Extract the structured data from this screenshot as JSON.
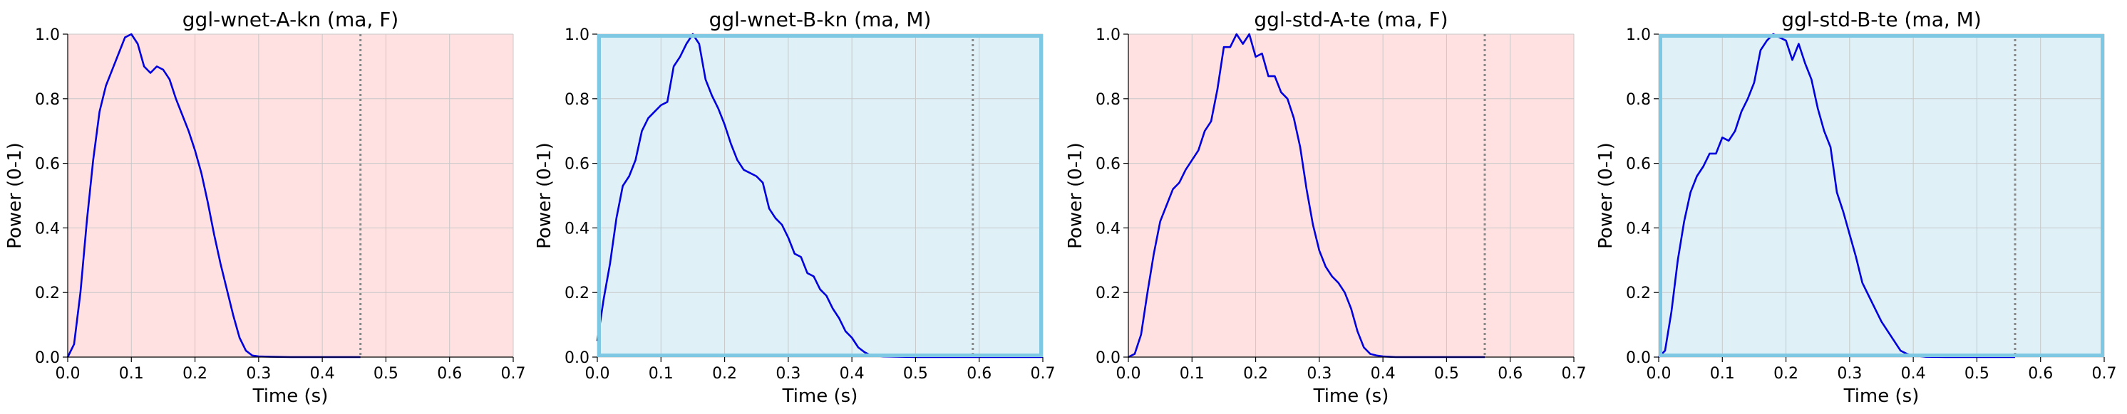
{
  "colors": {
    "line": "#0000dd",
    "female_bg": "#ffe1e1",
    "male_bg": "#dff0f7",
    "male_frame": "#7ec8e3",
    "grid": "#c8c8c8",
    "marker_line": "#888888"
  },
  "chart_data": [
    {
      "type": "line",
      "title": "ggl-wnet-A-kn (ma, F)",
      "xlabel": "Time (s)",
      "ylabel": "Power (0-1)",
      "xlim": [
        0.0,
        0.7
      ],
      "ylim": [
        0.0,
        1.0
      ],
      "xticks": [
        "0.0",
        "0.1",
        "0.2",
        "0.3",
        "0.4",
        "0.5",
        "0.6",
        "0.7"
      ],
      "yticks": [
        "0.0",
        "0.2",
        "0.4",
        "0.6",
        "0.8",
        "1.0"
      ],
      "grid": true,
      "background": "female",
      "marker_x": 0.46,
      "x": [
        0.0,
        0.01,
        0.02,
        0.03,
        0.04,
        0.05,
        0.06,
        0.07,
        0.08,
        0.09,
        0.1,
        0.11,
        0.12,
        0.13,
        0.14,
        0.15,
        0.16,
        0.17,
        0.18,
        0.19,
        0.2,
        0.21,
        0.22,
        0.23,
        0.24,
        0.25,
        0.26,
        0.27,
        0.28,
        0.29,
        0.3,
        0.32,
        0.35,
        0.4,
        0.46
      ],
      "y": [
        0.0,
        0.04,
        0.2,
        0.42,
        0.61,
        0.76,
        0.84,
        0.89,
        0.94,
        0.99,
        1.0,
        0.97,
        0.9,
        0.88,
        0.9,
        0.89,
        0.86,
        0.8,
        0.75,
        0.7,
        0.64,
        0.57,
        0.48,
        0.38,
        0.29,
        0.21,
        0.13,
        0.06,
        0.02,
        0.005,
        0.002,
        0.001,
        0.0,
        0.0,
        0.0
      ]
    },
    {
      "type": "line",
      "title": "ggl-wnet-B-kn (ma, M)",
      "xlabel": "Time (s)",
      "ylabel": "Power (0-1)",
      "xlim": [
        0.0,
        0.7
      ],
      "ylim": [
        0.0,
        1.0
      ],
      "xticks": [
        "0.0",
        "0.1",
        "0.2",
        "0.3",
        "0.4",
        "0.5",
        "0.6",
        "0.7"
      ],
      "yticks": [
        "0.0",
        "0.2",
        "0.4",
        "0.6",
        "0.8",
        "1.0"
      ],
      "grid": true,
      "background": "male",
      "marker_x": 0.59,
      "x": [
        0.0,
        0.01,
        0.02,
        0.03,
        0.04,
        0.05,
        0.06,
        0.07,
        0.08,
        0.09,
        0.1,
        0.11,
        0.12,
        0.13,
        0.14,
        0.15,
        0.16,
        0.17,
        0.18,
        0.19,
        0.2,
        0.21,
        0.22,
        0.23,
        0.24,
        0.25,
        0.26,
        0.27,
        0.28,
        0.29,
        0.3,
        0.31,
        0.32,
        0.33,
        0.34,
        0.35,
        0.36,
        0.37,
        0.38,
        0.39,
        0.4,
        0.41,
        0.42,
        0.43,
        0.45,
        0.5,
        0.6,
        0.7
      ],
      "y": [
        0.05,
        0.18,
        0.29,
        0.43,
        0.53,
        0.56,
        0.61,
        0.7,
        0.74,
        0.76,
        0.78,
        0.79,
        0.9,
        0.93,
        0.97,
        1.0,
        0.97,
        0.86,
        0.81,
        0.77,
        0.72,
        0.66,
        0.61,
        0.58,
        0.57,
        0.56,
        0.54,
        0.46,
        0.43,
        0.41,
        0.37,
        0.32,
        0.31,
        0.26,
        0.25,
        0.21,
        0.19,
        0.15,
        0.12,
        0.08,
        0.06,
        0.03,
        0.015,
        0.005,
        0.002,
        0.0,
        0.0,
        0.0
      ]
    },
    {
      "type": "line",
      "title": "ggl-std-A-te (ma, F)",
      "xlabel": "Time (s)",
      "ylabel": "Power (0-1)",
      "xlim": [
        0.0,
        0.7
      ],
      "ylim": [
        0.0,
        1.0
      ],
      "xticks": [
        "0.0",
        "0.1",
        "0.2",
        "0.3",
        "0.4",
        "0.5",
        "0.6",
        "0.7"
      ],
      "yticks": [
        "0.0",
        "0.2",
        "0.4",
        "0.6",
        "0.8",
        "1.0"
      ],
      "grid": true,
      "background": "female",
      "marker_x": 0.56,
      "x": [
        0.0,
        0.01,
        0.02,
        0.03,
        0.04,
        0.05,
        0.06,
        0.07,
        0.08,
        0.09,
        0.1,
        0.11,
        0.12,
        0.13,
        0.14,
        0.15,
        0.16,
        0.17,
        0.18,
        0.19,
        0.2,
        0.21,
        0.22,
        0.23,
        0.24,
        0.25,
        0.26,
        0.27,
        0.28,
        0.29,
        0.3,
        0.31,
        0.32,
        0.33,
        0.34,
        0.35,
        0.36,
        0.37,
        0.38,
        0.39,
        0.4,
        0.41,
        0.42,
        0.45,
        0.5,
        0.56
      ],
      "y": [
        0.0,
        0.01,
        0.07,
        0.2,
        0.32,
        0.42,
        0.47,
        0.52,
        0.54,
        0.58,
        0.61,
        0.64,
        0.7,
        0.73,
        0.83,
        0.96,
        0.96,
        1.0,
        0.97,
        1.0,
        0.93,
        0.94,
        0.87,
        0.87,
        0.82,
        0.8,
        0.74,
        0.65,
        0.52,
        0.41,
        0.33,
        0.28,
        0.25,
        0.23,
        0.2,
        0.15,
        0.08,
        0.03,
        0.01,
        0.005,
        0.002,
        0.001,
        0.0,
        0.0,
        0.0,
        0.0
      ]
    },
    {
      "type": "line",
      "title": "ggl-std-B-te (ma, M)",
      "xlabel": "Time (s)",
      "ylabel": "Power (0-1)",
      "xlim": [
        0.0,
        0.7
      ],
      "ylim": [
        0.0,
        1.0
      ],
      "xticks": [
        "0.0",
        "0.1",
        "0.2",
        "0.3",
        "0.4",
        "0.5",
        "0.6",
        "0.7"
      ],
      "yticks": [
        "0.0",
        "0.2",
        "0.4",
        "0.6",
        "0.8",
        "1.0"
      ],
      "grid": true,
      "background": "male",
      "marker_x": 0.56,
      "x": [
        0.0,
        0.01,
        0.02,
        0.03,
        0.04,
        0.05,
        0.06,
        0.07,
        0.08,
        0.09,
        0.1,
        0.11,
        0.12,
        0.13,
        0.14,
        0.15,
        0.16,
        0.17,
        0.18,
        0.19,
        0.2,
        0.21,
        0.22,
        0.23,
        0.24,
        0.25,
        0.26,
        0.27,
        0.28,
        0.29,
        0.3,
        0.31,
        0.32,
        0.33,
        0.34,
        0.35,
        0.36,
        0.37,
        0.38,
        0.39,
        0.4,
        0.42,
        0.45,
        0.5,
        0.56
      ],
      "y": [
        0.0,
        0.02,
        0.14,
        0.3,
        0.42,
        0.51,
        0.56,
        0.59,
        0.63,
        0.63,
        0.68,
        0.67,
        0.7,
        0.76,
        0.8,
        0.85,
        0.95,
        0.98,
        1.0,
        0.99,
        0.98,
        0.92,
        0.97,
        0.91,
        0.86,
        0.77,
        0.7,
        0.65,
        0.51,
        0.45,
        0.38,
        0.31,
        0.23,
        0.19,
        0.15,
        0.11,
        0.08,
        0.05,
        0.02,
        0.01,
        0.005,
        0.001,
        0.0,
        0.0,
        0.0
      ]
    }
  ]
}
